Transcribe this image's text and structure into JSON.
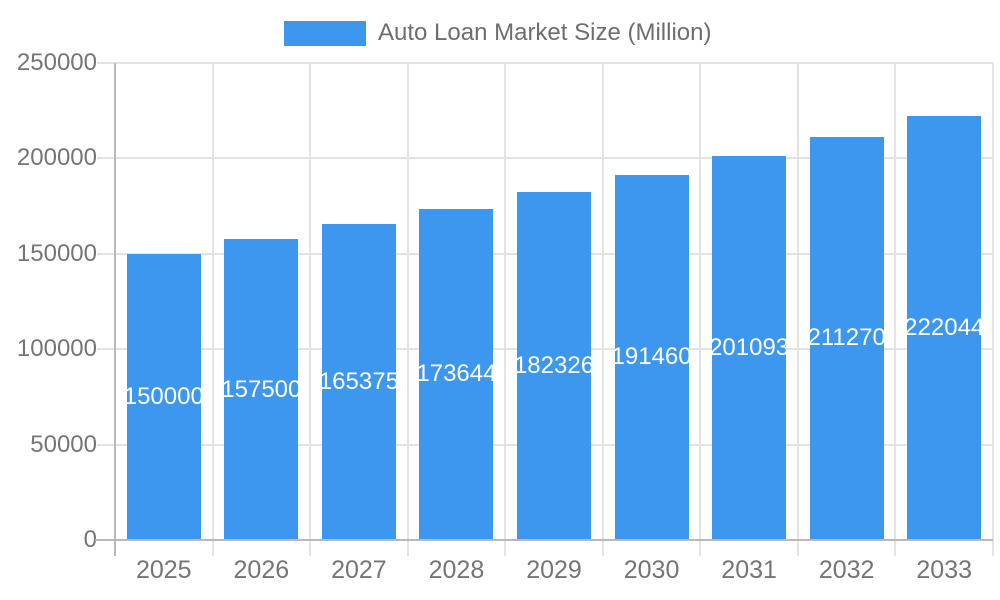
{
  "chart_data": {
    "type": "bar",
    "title": "Auto Loan Market Size (Million)",
    "legend_position": "top",
    "grid": true,
    "categories": [
      "2025",
      "2026",
      "2027",
      "2028",
      "2029",
      "2030",
      "2031",
      "2032",
      "2033"
    ],
    "series": [
      {
        "name": "Auto Loan Market Size (Million)",
        "values": [
          150000,
          157500,
          165375,
          173644,
          182326,
          191460,
          201093,
          211270,
          222044
        ]
      }
    ],
    "value_labels_shown": true,
    "xlabel": "",
    "ylabel": "",
    "ylim": [
      0,
      250000
    ],
    "y_ticks": [
      "0",
      "50000",
      "100000",
      "150000",
      "200000",
      "250000"
    ],
    "colors": {
      "bar": "#3d97ee",
      "gridline": "#e3e3e3",
      "axis_line": "#b9b9b9",
      "axis_text": "#757575",
      "legend_text": "#6e6e6e",
      "value_text": "#ffffff",
      "background": "#ffffff"
    }
  },
  "legend": {
    "label": "Auto Loan Market Size (Million)"
  }
}
